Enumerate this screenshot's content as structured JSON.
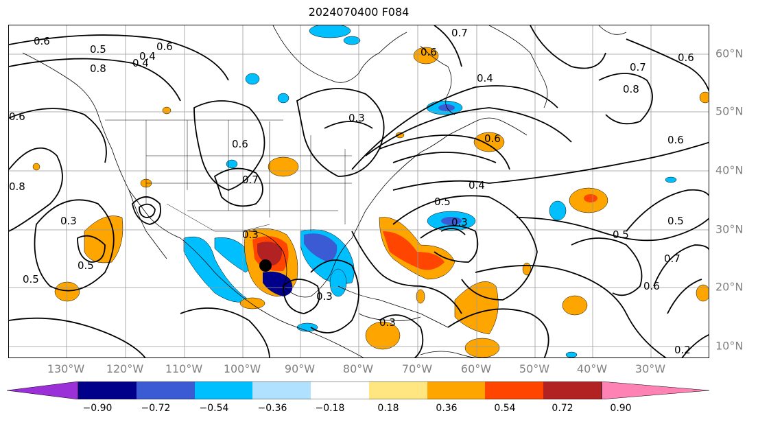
{
  "title": "2024070400 F084",
  "longitude_labels": [
    "130°W",
    "120°W",
    "110°W",
    "100°W",
    "90°W",
    "80°W",
    "70°W",
    "60°W",
    "50°W",
    "40°W",
    "30°W"
  ],
  "latitude_labels": [
    "60°N",
    "50°N",
    "40°N",
    "30°N",
    "20°N",
    "10°N"
  ],
  "colorbar": {
    "ticks": [
      "−0.90",
      "−0.72",
      "−0.54",
      "−0.36",
      "−0.18",
      "0.18",
      "0.36",
      "0.54",
      "0.72",
      "0.90"
    ],
    "colors": [
      "#9b30d9",
      "#00008b",
      "#3a5bd4",
      "#00bfff",
      "#b0e2ff",
      "#ffffff",
      "#ffe680",
      "#ffa500",
      "#ff4500",
      "#b22222",
      "#ff82b4"
    ]
  },
  "contour_labels": [
    "0.6",
    "0.5",
    "0.4",
    "0.8",
    "0.6",
    "0.7",
    "0.6",
    "0.6",
    "0.8",
    "0.4",
    "0.6",
    "0.7",
    "0.6",
    "0.5",
    "0.6",
    "0.8",
    "0.3",
    "0.5",
    "0.3",
    "0.5",
    "0.4",
    "0.5",
    "0.3",
    "0.5",
    "0.6",
    "0.3",
    "0.3",
    "0.3",
    "0.2",
    "0.4",
    "0.7",
    "0.7",
    "0.6"
  ],
  "marker": "storm-center-dot"
}
